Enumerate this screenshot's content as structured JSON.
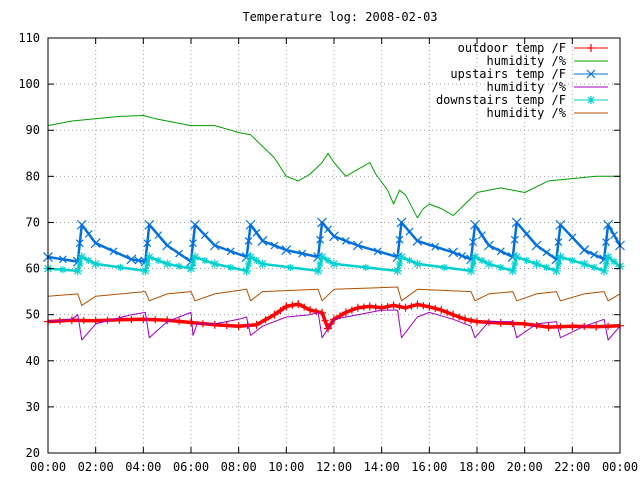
{
  "chart_data": {
    "type": "line",
    "title": "Temperature log: 2008-02-03",
    "xlabel": "",
    "ylabel": "",
    "ylim": [
      20,
      110
    ],
    "xlim": [
      "00:00",
      "24:00"
    ],
    "x_tick_labels": [
      "00:00",
      "02:00",
      "04:00",
      "06:00",
      "08:00",
      "10:00",
      "12:00",
      "14:00",
      "16:00",
      "18:00",
      "20:00",
      "22:00",
      "00:00"
    ],
    "y_tick_labels": [
      "20",
      "30",
      "40",
      "50",
      "60",
      "70",
      "80",
      "90",
      "100",
      "110"
    ],
    "grid": true,
    "legend_position": "top-right",
    "series": [
      {
        "name": "outdoor temp /F",
        "color": "#ff0000",
        "marker": "plus",
        "x": [
          "00:00",
          "01:00",
          "02:00",
          "03:00",
          "04:00",
          "05:00",
          "06:00",
          "07:00",
          "08:00",
          "08:45",
          "09:30",
          "10:00",
          "10:30",
          "11:00",
          "11:30",
          "11:45",
          "12:00",
          "12:30",
          "13:00",
          "13:30",
          "14:00",
          "14:30",
          "15:00",
          "15:30",
          "16:00",
          "16:30",
          "17:00",
          "17:30",
          "18:00",
          "19:00",
          "20:00",
          "21:00",
          "22:00",
          "23:00",
          "24:00"
        ],
        "y": [
          48.5,
          48.8,
          48.7,
          48.9,
          49.0,
          48.8,
          48.3,
          47.8,
          47.5,
          47.8,
          50.0,
          51.8,
          52.3,
          51.0,
          50.4,
          47.0,
          49.0,
          50.5,
          51.5,
          51.8,
          51.5,
          52.0,
          51.5,
          52.2,
          51.7,
          51.0,
          50.0,
          49.0,
          48.5,
          48.2,
          48.0,
          47.3,
          47.5,
          47.4,
          47.6
        ]
      },
      {
        "name": "humidity /%",
        "color": "#00a000",
        "marker": "none",
        "x": [
          "00:00",
          "01:00",
          "02:00",
          "03:00",
          "04:00",
          "04:30",
          "05:00",
          "06:00",
          "07:00",
          "08:00",
          "08:30",
          "09:30",
          "10:00",
          "10:30",
          "11:00",
          "11:30",
          "11:45",
          "12:00",
          "12:30",
          "13:00",
          "13:30",
          "13:45",
          "14:15",
          "14:30",
          "14:45",
          "15:00",
          "15:30",
          "15:45",
          "16:00",
          "16:30",
          "17:00",
          "17:30",
          "18:00",
          "19:00",
          "20:00",
          "21:00",
          "22:00",
          "23:00",
          "24:00"
        ],
        "y": [
          91,
          92,
          92.5,
          93,
          93.2,
          92.5,
          92,
          91,
          91,
          89.5,
          89,
          84,
          80,
          79,
          80.5,
          83,
          85,
          83,
          80,
          81.5,
          83,
          80.5,
          77,
          74,
          77,
          76,
          71,
          73,
          74,
          73,
          71.5,
          74,
          76.5,
          77.5,
          76.5,
          79,
          79.5,
          80,
          80
        ]
      },
      {
        "name": "upstairs temp /F",
        "color": "#0070e0",
        "marker": "x",
        "x": [
          "00:00",
          "01:15",
          "01:25",
          "02:00",
          "03:30",
          "04:05",
          "04:15",
          "05:00",
          "06:00",
          "06:10",
          "07:00",
          "08:20",
          "08:30",
          "09:00",
          "10:00",
          "11:20",
          "11:30",
          "12:00",
          "13:00",
          "14:40",
          "14:50",
          "15:30",
          "17:00",
          "17:45",
          "17:55",
          "18:30",
          "19:30",
          "19:40",
          "20:30",
          "21:20",
          "21:30",
          "22:30",
          "23:20",
          "23:30",
          "24:00"
        ],
        "y": [
          62.5,
          61.5,
          69.5,
          65.5,
          62,
          61.5,
          69.5,
          65,
          61.5,
          69.5,
          65,
          62.5,
          69.5,
          66,
          64,
          62.5,
          70,
          67,
          65,
          62.5,
          70,
          66,
          63.5,
          62,
          69.5,
          65,
          62.5,
          70,
          65,
          62,
          69.5,
          64,
          62,
          69.5,
          65
        ]
      },
      {
        "name": "humidity /%",
        "color": "#a000c0",
        "marker": "none",
        "x": [
          "00:00",
          "01:00",
          "01:15",
          "01:25",
          "02:00",
          "03:30",
          "04:05",
          "04:15",
          "05:00",
          "06:00",
          "06:05",
          "06:15",
          "07:00",
          "08:00",
          "08:20",
          "08:30",
          "09:00",
          "10:00",
          "11:00",
          "11:20",
          "11:30",
          "12:00",
          "13:00",
          "14:00",
          "14:40",
          "14:50",
          "15:30",
          "16:00",
          "17:00",
          "17:45",
          "17:55",
          "18:30",
          "19:30",
          "19:40",
          "20:30",
          "21:20",
          "21:30",
          "22:30",
          "23:20",
          "23:30",
          "24:00"
        ],
        "y": [
          48.5,
          49,
          50,
          44.5,
          48,
          50,
          50.5,
          45,
          48.5,
          50.5,
          45.5,
          48,
          48,
          49,
          49.5,
          45.5,
          47.5,
          49.5,
          50,
          50.5,
          45,
          49,
          50,
          51,
          51,
          45,
          49.5,
          50.5,
          49,
          47.5,
          45,
          48.5,
          48.5,
          45,
          48,
          48.5,
          45,
          47.5,
          49,
          44.5,
          47.5
        ]
      },
      {
        "name": "downstairs temp /F",
        "color": "#00d0d0",
        "marker": "star",
        "x": [
          "00:00",
          "01:15",
          "01:25",
          "02:00",
          "04:05",
          "04:15",
          "05:00",
          "06:00",
          "06:10",
          "07:00",
          "08:20",
          "08:30",
          "09:00",
          "11:20",
          "11:30",
          "12:00",
          "14:40",
          "14:50",
          "15:30",
          "17:45",
          "17:55",
          "18:30",
          "19:30",
          "19:40",
          "20:30",
          "21:20",
          "21:30",
          "22:30",
          "23:20",
          "23:30",
          "24:00"
        ],
        "y": [
          60,
          59.5,
          62.5,
          61,
          59.5,
          62.5,
          61,
          60,
          62.5,
          61,
          59.5,
          62.5,
          61,
          59.5,
          62.5,
          61,
          59.5,
          62.5,
          61,
          59.5,
          62.5,
          61,
          59.5,
          62.5,
          61,
          59.5,
          62.5,
          61,
          59.5,
          62.5,
          60.5
        ]
      },
      {
        "name": "humidity /%",
        "color": "#b05000",
        "marker": "none",
        "x": [
          "00:00",
          "01:15",
          "01:25",
          "02:00",
          "04:05",
          "04:15",
          "05:00",
          "06:00",
          "06:10",
          "07:00",
          "08:20",
          "08:30",
          "09:00",
          "11:20",
          "11:30",
          "12:00",
          "14:40",
          "14:50",
          "15:30",
          "17:45",
          "17:55",
          "18:30",
          "19:30",
          "19:40",
          "20:30",
          "21:20",
          "21:30",
          "22:30",
          "23:20",
          "23:30",
          "24:00"
        ],
        "y": [
          54,
          54.5,
          52,
          54,
          55,
          53,
          54.5,
          55,
          53,
          54.5,
          55.5,
          53,
          55,
          55.5,
          53,
          55.5,
          56,
          53,
          55.5,
          55,
          53,
          54.5,
          55,
          53,
          54.5,
          55,
          53,
          54.5,
          55,
          53,
          54.5
        ]
      }
    ]
  }
}
